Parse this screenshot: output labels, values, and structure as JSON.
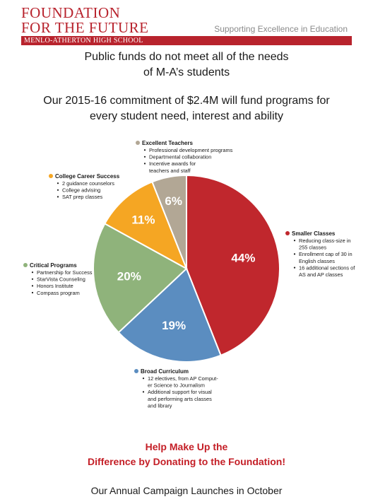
{
  "header": {
    "logo_line1": "FOUNDATION",
    "logo_line2": "FOR THE FUTURE",
    "tagline": "Supporting Excellence in Education",
    "school": "MENLO-ATHERTON HIGH SCHOOL"
  },
  "intro": {
    "line1": "Public funds do not meet all of the needs",
    "line2": "of M-A’s students",
    "line3": "Our 2015-16 commitment of $2.4M will fund programs for",
    "line4": "every student need, interest and ability"
  },
  "chart_data": {
    "type": "pie",
    "title": "",
    "slices": [
      {
        "label": "Smaller Classes",
        "value": 44,
        "value_label": "44%",
        "color": "#c0272d",
        "bullets": [
          "Reducing class-size in",
          "255 classes",
          "Enrollment cap of 30 in",
          "English classes",
          "16 additional sections of",
          "AS and AP classes"
        ]
      },
      {
        "label": "Broad Curriculum",
        "value": 19,
        "value_label": "19%",
        "color": "#5b8dc0",
        "bullets": [
          "12 electives, from AP Comput-",
          "er Science to Journalism",
          "Additional support for visual",
          "and performing arts classes",
          "and library"
        ]
      },
      {
        "label": "Critical Programs",
        "value": 20,
        "value_label": "20%",
        "color": "#8fb37b",
        "bullets": [
          "Partnership for Success",
          "StarVista Counseling",
          "Honors Institute",
          "Compass program"
        ]
      },
      {
        "label": "College Career Success",
        "value": 11,
        "value_label": "11%",
        "color": "#f5a623",
        "bullets": [
          "2 guidance counselors",
          "College advising",
          "SAT prep classes"
        ]
      },
      {
        "label": "Excellent Teachers",
        "value": 6,
        "value_label": "6%",
        "color": "#b2a795",
        "bullets": [
          "Professional development programs",
          "Departmental collaboration",
          "Incentive awards for",
          "teachers and staff"
        ]
      }
    ]
  },
  "cta": {
    "line1": "Help Make Up the",
    "line2": "Difference by Donating to the Foundation!"
  },
  "footer": {
    "launch": "Our Annual Campaign Launches in October"
  }
}
